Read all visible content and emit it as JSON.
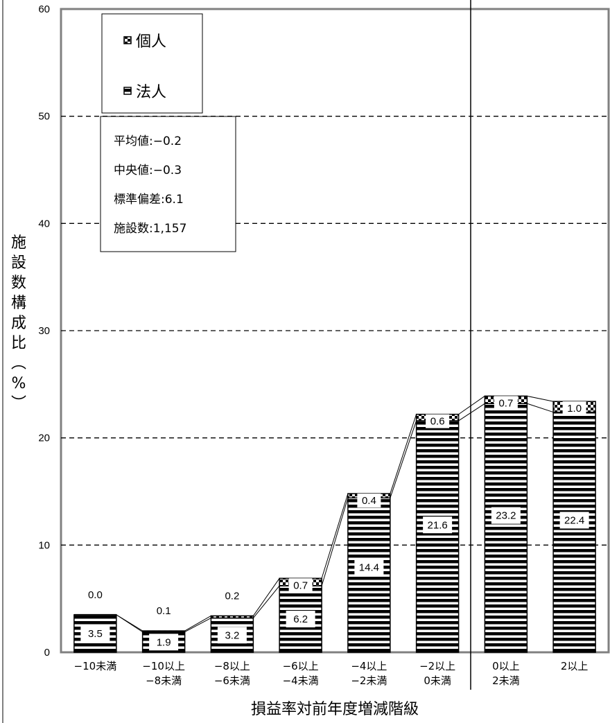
{
  "chart_data": {
    "type": "bar",
    "stacked": true,
    "categories": [
      [
        "−10未満"
      ],
      [
        "−10以上",
        "−8未満"
      ],
      [
        "−8以上",
        "−6未満"
      ],
      [
        "−6以上",
        "−4未満"
      ],
      [
        "−4以上",
        "−2未満"
      ],
      [
        "−2以上",
        "0未満"
      ],
      [
        "0以上",
        "2未満"
      ],
      [
        "2以上"
      ]
    ],
    "series": [
      {
        "name": "法人",
        "values": [
          3.5,
          1.9,
          3.2,
          6.2,
          14.4,
          21.6,
          23.2,
          22.4
        ]
      },
      {
        "name": "個人",
        "values": [
          0.0,
          0.1,
          0.2,
          0.7,
          0.4,
          0.6,
          0.7,
          1.0
        ]
      }
    ],
    "legend_order": [
      "個人",
      "法人"
    ],
    "legend_position": "top-left",
    "xlabel": "損益率対前年度増減階級",
    "ylabel": "施設数構成比（%）",
    "ylim": [
      0,
      60
    ],
    "yticks": [
      0,
      10,
      20,
      30,
      40,
      50,
      60
    ],
    "grid": "dashed horizontal",
    "vertical_divider_between": [
      "−2以上 0未満",
      "0以上 2未満"
    ]
  },
  "stats": {
    "lines": [
      "平均値:−0.2",
      "中央値:−0.3",
      "標準偏差:6.1",
      "施設数:1,157"
    ]
  },
  "colors": {
    "stripe": "#000000",
    "background": "#ffffff",
    "grid": "#000000",
    "axis": "#808080"
  }
}
